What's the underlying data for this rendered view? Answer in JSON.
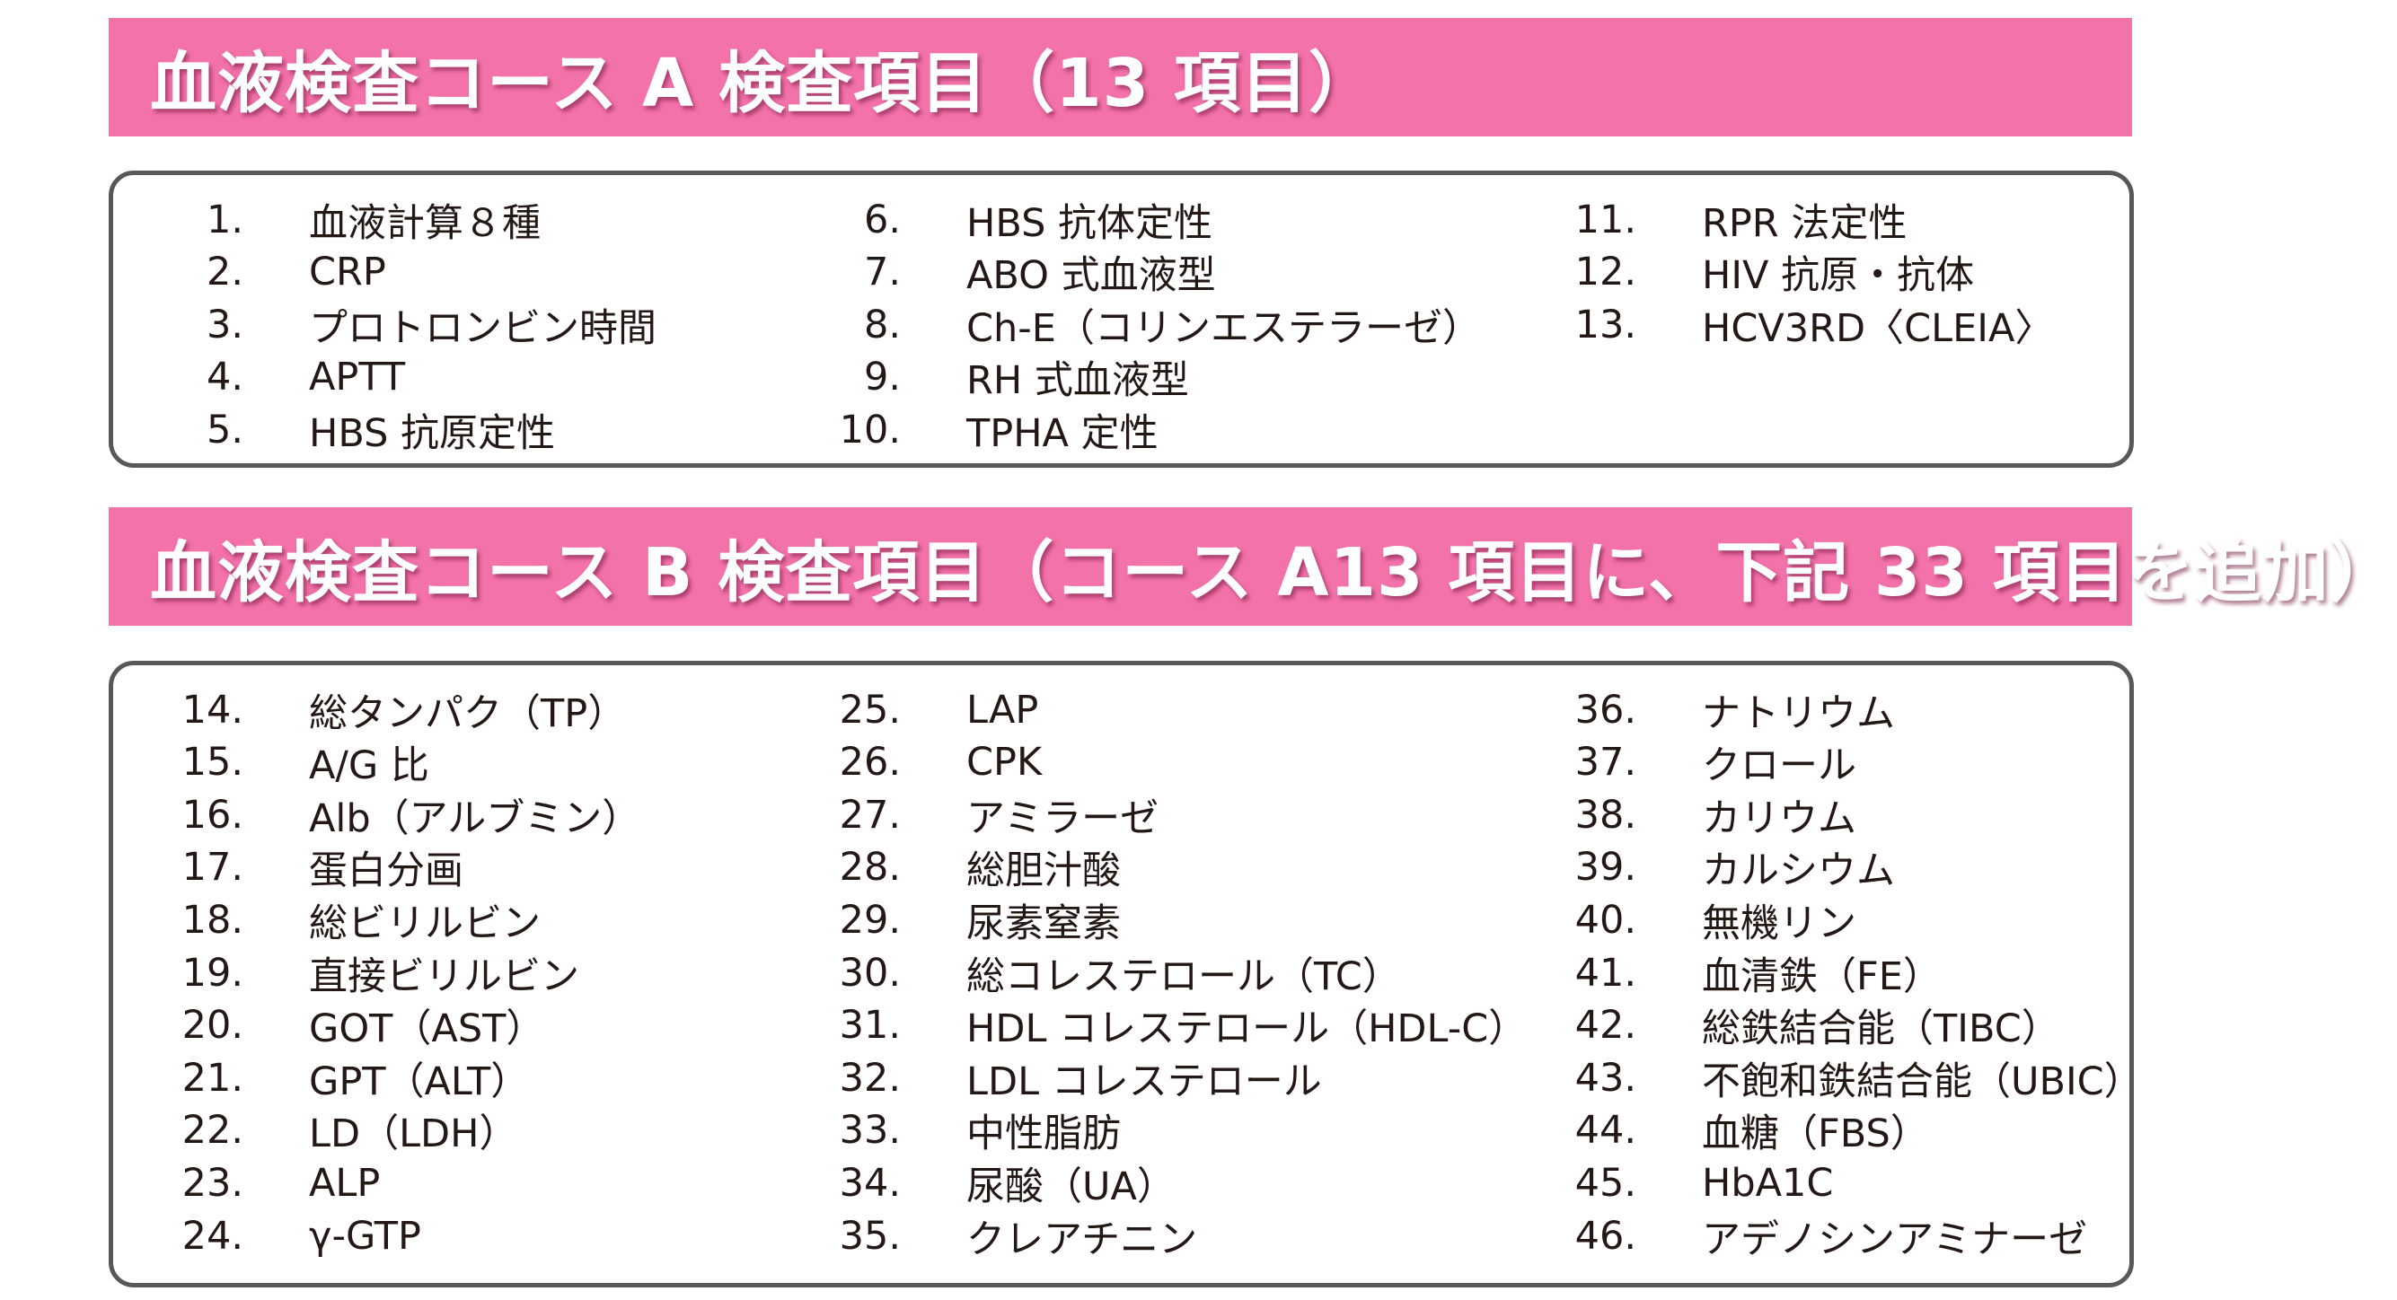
{
  "colors": {
    "banner_background": "#f472aa",
    "banner_text": "#ffffff",
    "panel_border": "#595757",
    "body_text": "#231815"
  },
  "course_a": {
    "title": "血液検査コース A 検査項目（13 項目）",
    "columns": [
      [
        {
          "num": "1.",
          "label": "血液計算８種"
        },
        {
          "num": "2.",
          "label": "CRP"
        },
        {
          "num": "3.",
          "label": "プロトロンビン時間"
        },
        {
          "num": "4.",
          "label": "APTT"
        },
        {
          "num": "5.",
          "label": "HBS 抗原定性"
        }
      ],
      [
        {
          "num": "6.",
          "label": "HBS 抗体定性"
        },
        {
          "num": "7.",
          "label": "ABO 式血液型"
        },
        {
          "num": "8.",
          "label": "Ch-E（コリンエステラーゼ）"
        },
        {
          "num": "9.",
          "label": "RH 式血液型"
        },
        {
          "num": "10.",
          "label": "TPHA 定性"
        }
      ],
      [
        {
          "num": "11.",
          "label": "RPR 法定性"
        },
        {
          "num": "12.",
          "label": "HIV 抗原・抗体"
        },
        {
          "num": "13.",
          "label": "HCV3RD〈CLEIA〉"
        }
      ]
    ]
  },
  "course_b": {
    "title": "血液検査コース B 検査項目（コース A13 項目に、下記 33 項目を追加）",
    "columns": [
      [
        {
          "num": "14.",
          "label": "総タンパク（TP）"
        },
        {
          "num": "15.",
          "label": "A/G 比"
        },
        {
          "num": "16.",
          "label": "Alb（アルブミン）"
        },
        {
          "num": "17.",
          "label": "蛋白分画"
        },
        {
          "num": "18.",
          "label": "総ビリルビン"
        },
        {
          "num": "19.",
          "label": "直接ビリルビン"
        },
        {
          "num": "20.",
          "label": "GOT（AST）"
        },
        {
          "num": "21.",
          "label": "GPT（ALT）"
        },
        {
          "num": "22.",
          "label": "LD（LDH）"
        },
        {
          "num": "23.",
          "label": "ALP"
        },
        {
          "num": "24.",
          "label": "γ-GTP"
        }
      ],
      [
        {
          "num": "25.",
          "label": "LAP"
        },
        {
          "num": "26.",
          "label": "CPK"
        },
        {
          "num": "27.",
          "label": "アミラーゼ"
        },
        {
          "num": "28.",
          "label": "総胆汁酸"
        },
        {
          "num": "29.",
          "label": "尿素窒素"
        },
        {
          "num": "30.",
          "label": "総コレステロール（TC）"
        },
        {
          "num": "31.",
          "label": "HDL コレステロール（HDL-C）"
        },
        {
          "num": "32.",
          "label": "LDL コレステロール"
        },
        {
          "num": "33.",
          "label": "中性脂肪"
        },
        {
          "num": "34.",
          "label": "尿酸（UA）"
        },
        {
          "num": "35.",
          "label": "クレアチニン"
        }
      ],
      [
        {
          "num": "36.",
          "label": "ナトリウム"
        },
        {
          "num": "37.",
          "label": "クロール"
        },
        {
          "num": "38.",
          "label": "カリウム"
        },
        {
          "num": "39.",
          "label": "カルシウム"
        },
        {
          "num": "40.",
          "label": "無機リン"
        },
        {
          "num": "41.",
          "label": "血清鉄（FE）"
        },
        {
          "num": "42.",
          "label": "総鉄結合能（TIBC）"
        },
        {
          "num": "43.",
          "label": "不飽和鉄結合能（UBIC）"
        },
        {
          "num": "44.",
          "label": "血糖（FBS）"
        },
        {
          "num": "45.",
          "label": "HbA1C"
        },
        {
          "num": "46.",
          "label": "アデノシンアミナーゼ"
        }
      ]
    ]
  }
}
